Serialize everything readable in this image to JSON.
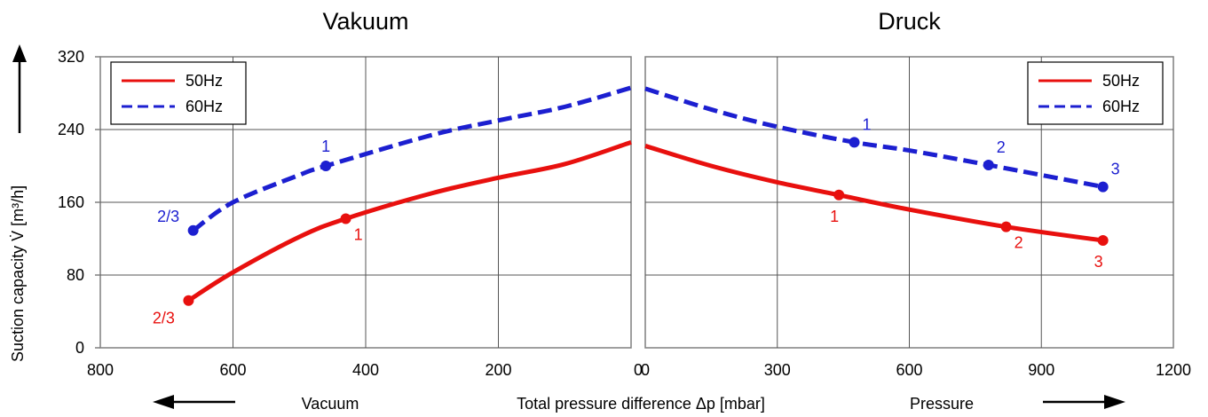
{
  "colors": {
    "hz50": "#e8100e",
    "hz60": "#1c1fd0",
    "grid": "#555555",
    "frame": "#7f7f7f"
  },
  "chart_data": {
    "type": "line",
    "ylabel": "Suction capacity V̇ [m³/h]",
    "xlabel": "Total pressure difference Δp [mbar]",
    "ylim": [
      0,
      320
    ],
    "yticks": [
      "0",
      "80",
      "160",
      "240",
      "320"
    ],
    "ytick_values": [
      0,
      80,
      160,
      240,
      320
    ],
    "legend": {
      "items": [
        "50Hz",
        "60Hz"
      ],
      "placement": "top-left / top-right"
    },
    "bottom_labels": {
      "left": "Vacuum",
      "right": "Pressure"
    },
    "panels": [
      {
        "title": "Vakuum",
        "xlim": [
          800,
          0
        ],
        "xticks": [
          "800",
          "600",
          "400",
          "200",
          "0"
        ],
        "xtick_values": [
          800,
          600,
          400,
          200,
          0
        ],
        "legend_placement": "top-left",
        "series": [
          {
            "name": "50Hz",
            "style": "solid",
            "x": [
              667,
              600,
              500,
              430,
              300,
              200,
              100,
              0
            ],
            "y": [
              52,
              83,
              122,
              142,
              170,
              187,
              202,
              226
            ]
          },
          {
            "name": "60Hz",
            "style": "dashed",
            "x": [
              660,
              600,
              500,
              460,
              300,
              200,
              100,
              0
            ],
            "y": [
              129,
              160,
              190,
              200,
              234,
              250,
              265,
              286
            ]
          }
        ],
        "points": [
          {
            "series": "50Hz",
            "x": 667,
            "y": 52,
            "label": "2/3",
            "pos": "below-left"
          },
          {
            "series": "50Hz",
            "x": 430,
            "y": 142,
            "label": "1",
            "pos": "below-right"
          },
          {
            "series": "60Hz",
            "x": 660,
            "y": 129,
            "label": "2/3",
            "pos": "above-left"
          },
          {
            "series": "60Hz",
            "x": 460,
            "y": 200,
            "label": "1",
            "pos": "above"
          }
        ]
      },
      {
        "title": "Druck",
        "xlim": [
          0,
          1200
        ],
        "xticks": [
          "0",
          "300",
          "600",
          "900",
          "1200"
        ],
        "xtick_values": [
          0,
          300,
          600,
          900,
          1200
        ],
        "legend_placement": "top-right",
        "series": [
          {
            "name": "50Hz",
            "style": "solid",
            "x": [
              0,
              150,
              300,
              440,
              600,
              820,
              1040
            ],
            "y": [
              222,
              200,
              182,
              168,
              152,
              133,
              118
            ]
          },
          {
            "name": "60Hz",
            "style": "dashed",
            "x": [
              0,
              150,
              300,
              475,
              600,
              780,
              1040
            ],
            "y": [
              285,
              262,
              243,
              226,
              217,
              201,
              177
            ]
          }
        ],
        "points": [
          {
            "series": "50Hz",
            "x": 440,
            "y": 168,
            "label": "1",
            "pos": "below"
          },
          {
            "series": "50Hz",
            "x": 820,
            "y": 133,
            "label": "2",
            "pos": "below-right"
          },
          {
            "series": "50Hz",
            "x": 1040,
            "y": 118,
            "label": "3",
            "pos": "below"
          },
          {
            "series": "60Hz",
            "x": 475,
            "y": 226,
            "label": "1",
            "pos": "above-right"
          },
          {
            "series": "60Hz",
            "x": 780,
            "y": 201,
            "label": "2",
            "pos": "above-right"
          },
          {
            "series": "60Hz",
            "x": 1040,
            "y": 177,
            "label": "3",
            "pos": "above-right"
          }
        ]
      }
    ]
  }
}
